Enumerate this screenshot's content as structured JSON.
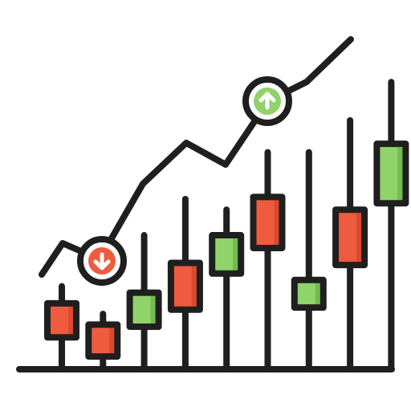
{
  "icon": {
    "name": "candlestick-chart-trend-icon",
    "colors": {
      "stroke": "#1f1f1f",
      "red": "#ef5b3f",
      "red_shade": "#d94a2f",
      "green": "#8fd36a",
      "green_shade": "#74bb4f",
      "badge_fill": "#ffffff"
    },
    "trend": {
      "direction": "up",
      "points": [
        [
          0,
          1
        ],
        [
          1,
          0
        ],
        [
          2,
          5
        ],
        [
          3,
          6
        ],
        [
          4,
          8
        ],
        [
          5,
          9
        ],
        [
          6,
          11
        ],
        [
          7,
          12
        ]
      ]
    },
    "badges": [
      {
        "name": "down-arrow-badge",
        "color": "red",
        "arrow": "down",
        "at_point": 1
      },
      {
        "name": "up-arrow-badge",
        "color": "green",
        "arrow": "up",
        "at_point": 5
      }
    ],
    "candles": [
      {
        "color": "red",
        "open": 3.1,
        "close": 1.5,
        "high": 3.9,
        "low": 0.0
      },
      {
        "color": "red",
        "open": 2.1,
        "close": 0.6,
        "high": 2.6,
        "low": 0.0
      },
      {
        "color": "green",
        "open": 2.0,
        "close": 3.6,
        "high": 6.3,
        "low": 0.0
      },
      {
        "color": "red",
        "open": 5.0,
        "close": 2.8,
        "high": 8.0,
        "low": 0.0
      },
      {
        "color": "green",
        "open": 4.5,
        "close": 6.3,
        "high": 7.5,
        "low": 0.0
      },
      {
        "color": "red",
        "open": 8.1,
        "close": 5.7,
        "high": 10.2,
        "low": 0.0
      },
      {
        "color": "green",
        "open": 2.9,
        "close": 4.2,
        "high": 10.2,
        "low": 0.0
      },
      {
        "color": "red",
        "open": 7.5,
        "close": 4.9,
        "high": 11.7,
        "low": 0.0
      },
      {
        "color": "green",
        "open": 7.8,
        "close": 10.6,
        "high": 13.5,
        "low": 0.0
      }
    ]
  }
}
